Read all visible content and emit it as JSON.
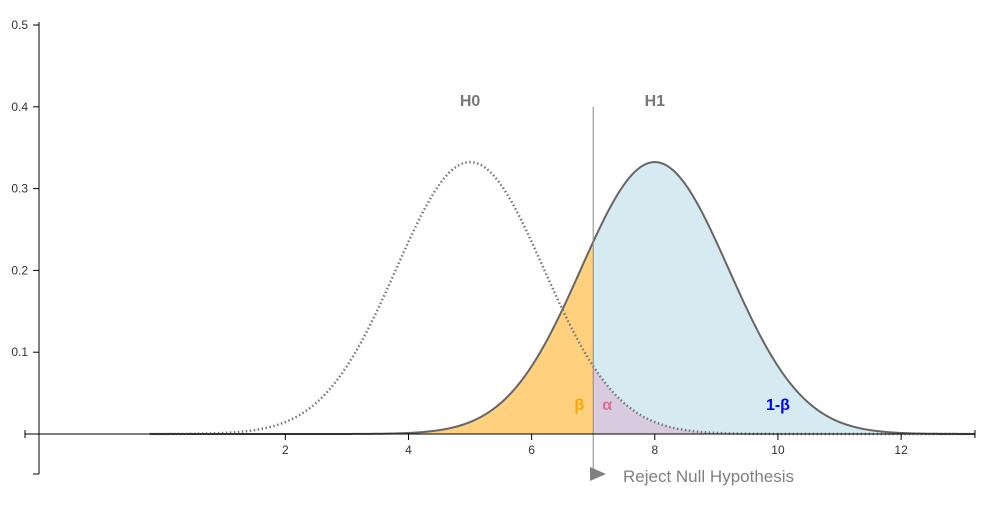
{
  "chart_data": {
    "type": "area",
    "title": "",
    "xlabel": "",
    "ylabel": "",
    "xlim": [
      -2,
      13.2
    ],
    "ylim": [
      0,
      0.5
    ],
    "x_ticks": [
      2,
      4,
      6,
      8,
      10,
      12
    ],
    "y_ticks": [
      0.1,
      0.2,
      0.3,
      0.4,
      0.5
    ],
    "series": [
      {
        "name": "H0",
        "mean": 5,
        "sd": 1.2,
        "line_style": "dotted",
        "line_color": "#777777"
      },
      {
        "name": "H1",
        "mean": 8,
        "sd": 1.2,
        "line_style": "solid",
        "line_color": "#666666"
      }
    ],
    "critical_value": 7,
    "regions": [
      {
        "label": "β",
        "description": "H1 area left of critical value",
        "fill": "#FFD17F",
        "label_color": "#FFA500"
      },
      {
        "label": "α",
        "description": "H0 area right of critical value",
        "fill": "#D8BFD8",
        "label_color": "#DB7093"
      },
      {
        "label": "1-β",
        "description": "H1 area right of critical value",
        "fill": "#D6EAF2",
        "label_color": "#0000FF"
      }
    ],
    "annotation": "Reject Null Hypothesis"
  }
}
